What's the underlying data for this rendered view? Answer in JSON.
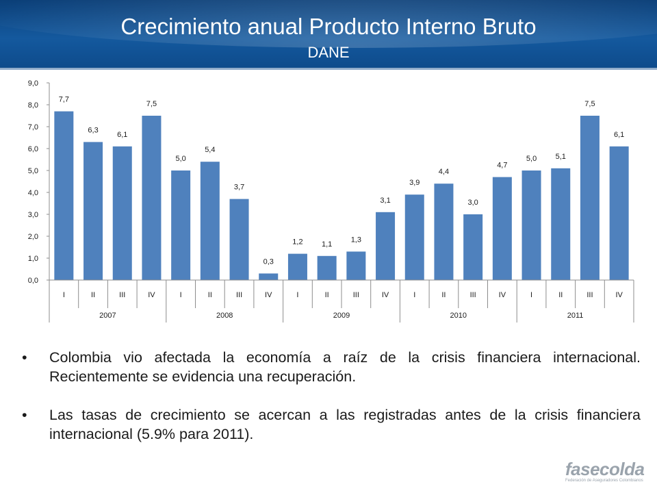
{
  "header": {
    "title": "Crecimiento anual Producto Interno Bruto",
    "subtitle": "DANE"
  },
  "chart_data": {
    "type": "bar",
    "categories": [
      "I",
      "II",
      "III",
      "IV",
      "I",
      "II",
      "III",
      "IV",
      "I",
      "II",
      "III",
      "IV",
      "I",
      "II",
      "III",
      "IV",
      "I",
      "II",
      "III",
      "IV"
    ],
    "groups": [
      "2007",
      "2008",
      "2009",
      "2010",
      "2011"
    ],
    "values": [
      7.7,
      6.3,
      6.1,
      7.5,
      5.0,
      5.4,
      3.7,
      0.3,
      1.2,
      1.1,
      1.3,
      3.1,
      3.9,
      4.4,
      3.0,
      4.7,
      5.0,
      5.1,
      7.5,
      6.1
    ],
    "data_labels": [
      "7,7",
      "6,3",
      "6,1",
      "7,5",
      "5,0",
      "5,4",
      "3,7",
      "0,3",
      "1,2",
      "1,1",
      "1,3",
      "3,1",
      "3,9",
      "4,4",
      "3,0",
      "4,7",
      "5,0",
      "5,1",
      "7,5",
      "6,1"
    ],
    "y_ticks": [
      "0,0",
      "1,0",
      "2,0",
      "3,0",
      "4,0",
      "5,0",
      "6,0",
      "7,0",
      "8,0",
      "9,0"
    ],
    "ylim": [
      0,
      9
    ],
    "bar_color": "#4f81bd",
    "grid": false,
    "legend": "none"
  },
  "bullets": [
    "Colombia vio afectada la economía a raíz de la crisis financiera internacional. Recientemente se evidencia una recuperación.",
    "Las tasas de crecimiento se acercan a las registradas antes de la crisis financiera internacional (5.9% para 2011)."
  ],
  "bullet_symbol": "•",
  "logo": {
    "name": "fasecolda",
    "tagline": "Federación de Aseguradores Colombianos"
  },
  "colors": {
    "header_bg": "#0d4a8a",
    "title_text": "#ffffff",
    "body_text": "#1a1a1a",
    "logo_gray": "#9aa3ac"
  }
}
